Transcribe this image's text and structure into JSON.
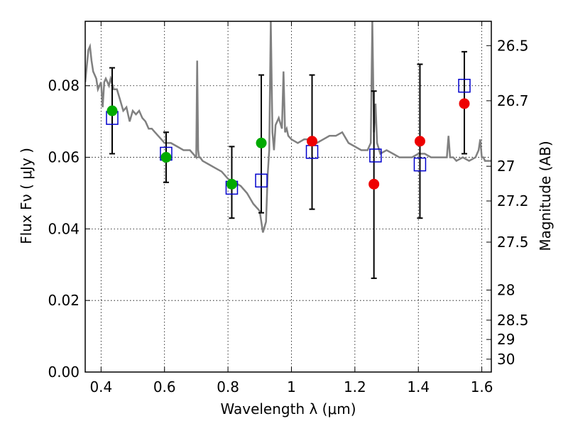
{
  "chart_data": {
    "type": "scatter",
    "xlabel": "Wavelength  λ (μm)",
    "ylabel": "Flux  Fν  ( μJy )",
    "y2label": "Magnitude (AB)",
    "xlim": [
      0.35,
      1.63
    ],
    "ylim": [
      0.0,
      0.098
    ],
    "grid": true,
    "xticks": [
      0.4,
      0.6,
      0.8,
      1.0,
      1.2,
      1.4,
      1.6
    ],
    "xtick_labels": [
      "0.4",
      "0.6",
      "0.8",
      "1",
      "1.2",
      "1.4",
      "1.6"
    ],
    "yticks": [
      0.0,
      0.02,
      0.04,
      0.06,
      0.08
    ],
    "ytick_labels": [
      "0.00",
      "0.02",
      "0.04",
      "0.06",
      "0.08"
    ],
    "y2ticks": [
      {
        "label": "26.5",
        "flux": 0.0912
      },
      {
        "label": "26.7",
        "flux": 0.0758
      },
      {
        "label": "27",
        "flux": 0.0575
      },
      {
        "label": "27.2",
        "flux": 0.0478
      },
      {
        "label": "27.5",
        "flux": 0.0363
      },
      {
        "label": "28",
        "flux": 0.0229
      },
      {
        "label": "28.5",
        "flux": 0.0145
      },
      {
        "label": "29",
        "flux": 0.0091
      },
      {
        "label": "30",
        "flux": 0.0036
      }
    ],
    "colors": {
      "model_line": "#808080",
      "square": "#0000cc",
      "green": "#00aa00",
      "red": "#ee0000",
      "errorbar": "#000000"
    },
    "model_spectrum": {
      "x": [
        0.35,
        0.36,
        0.365,
        0.37,
        0.375,
        0.38,
        0.385,
        0.39,
        0.395,
        0.4,
        0.405,
        0.41,
        0.415,
        0.42,
        0.425,
        0.43,
        0.44,
        0.45,
        0.46,
        0.47,
        0.48,
        0.49,
        0.5,
        0.51,
        0.52,
        0.53,
        0.54,
        0.55,
        0.56,
        0.57,
        0.58,
        0.59,
        0.6,
        0.62,
        0.64,
        0.66,
        0.68,
        0.7,
        0.703,
        0.706,
        0.709,
        0.712,
        0.72,
        0.74,
        0.76,
        0.78,
        0.8,
        0.82,
        0.84,
        0.86,
        0.88,
        0.9,
        0.91,
        0.92,
        0.925,
        0.93,
        0.935,
        0.94,
        0.945,
        0.95,
        0.96,
        0.97,
        0.975,
        0.98,
        0.985,
        0.99,
        1.0,
        1.02,
        1.04,
        1.06,
        1.08,
        1.1,
        1.12,
        1.14,
        1.16,
        1.18,
        1.2,
        1.22,
        1.24,
        1.25,
        1.255,
        1.26,
        1.265,
        1.27,
        1.28,
        1.3,
        1.32,
        1.34,
        1.36,
        1.38,
        1.4,
        1.42,
        1.44,
        1.46,
        1.48,
        1.49,
        1.495,
        1.5,
        1.505,
        1.51,
        1.52,
        1.54,
        1.56,
        1.58,
        1.59,
        1.595,
        1.6,
        1.605,
        1.61,
        1.62,
        1.63
      ],
      "y": [
        0.081,
        0.09,
        0.091,
        0.087,
        0.084,
        0.083,
        0.082,
        0.079,
        0.08,
        0.081,
        0.074,
        0.081,
        0.082,
        0.081,
        0.08,
        0.082,
        0.079,
        0.079,
        0.076,
        0.073,
        0.074,
        0.07,
        0.073,
        0.072,
        0.073,
        0.071,
        0.07,
        0.068,
        0.068,
        0.067,
        0.066,
        0.065,
        0.064,
        0.064,
        0.063,
        0.062,
        0.062,
        0.06,
        0.087,
        0.062,
        0.06,
        0.06,
        0.059,
        0.058,
        0.057,
        0.056,
        0.054,
        0.053,
        0.052,
        0.05,
        0.047,
        0.045,
        0.039,
        0.042,
        0.055,
        0.062,
        0.098,
        0.067,
        0.062,
        0.069,
        0.071,
        0.068,
        0.084,
        0.067,
        0.068,
        0.066,
        0.065,
        0.064,
        0.065,
        0.065,
        0.064,
        0.065,
        0.066,
        0.066,
        0.067,
        0.064,
        0.063,
        0.062,
        0.062,
        0.064,
        0.098,
        0.067,
        0.075,
        0.064,
        0.061,
        0.062,
        0.061,
        0.06,
        0.06,
        0.06,
        0.061,
        0.061,
        0.06,
        0.06,
        0.06,
        0.06,
        0.066,
        0.06,
        0.06,
        0.06,
        0.059,
        0.06,
        0.059,
        0.06,
        0.062,
        0.065,
        0.06,
        0.06,
        0.059,
        0.059,
        0.059
      ]
    },
    "model_points": {
      "marker": "open-square",
      "x": [
        0.435,
        0.605,
        0.812,
        0.905,
        1.065,
        1.265,
        1.405,
        1.545
      ],
      "y": [
        0.071,
        0.061,
        0.0515,
        0.0535,
        0.0615,
        0.0605,
        0.058,
        0.08
      ]
    },
    "observed_points": {
      "marker": "filled-circle",
      "x": [
        0.435,
        0.605,
        0.812,
        0.905,
        1.065,
        1.26,
        1.405,
        1.545
      ],
      "y": [
        0.073,
        0.06,
        0.0525,
        0.064,
        0.0645,
        0.0525,
        0.0645,
        0.075
      ],
      "yerr_low": [
        0.061,
        0.053,
        0.043,
        0.0445,
        0.0455,
        0.0262,
        0.043,
        0.061
      ],
      "yerr_high": [
        0.085,
        0.067,
        0.063,
        0.083,
        0.083,
        0.0785,
        0.086,
        0.0895
      ],
      "color_keys": [
        "green",
        "green",
        "green",
        "green",
        "red",
        "red",
        "red",
        "red"
      ]
    }
  }
}
